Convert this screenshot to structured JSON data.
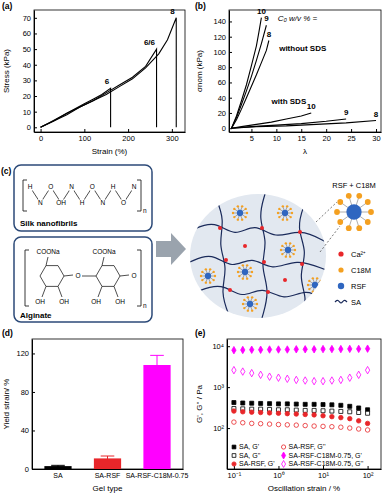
{
  "chart_data": [
    {
      "type": "line",
      "annotations": [
        "(a)"
      ],
      "xlabel": "Strain (%)",
      "ylabel": "Stress (kPa)",
      "xlim": [
        -15,
        330
      ],
      "ylim": [
        -3,
        75
      ],
      "xticks": [
        0,
        100,
        200,
        300
      ],
      "yticks": [
        0,
        10,
        20,
        30,
        40,
        50,
        60,
        70
      ],
      "series": [
        {
          "name": "6",
          "color": "#000000",
          "x": [
            0,
            20,
            40,
            60,
            80,
            100,
            120,
            140,
            160,
            160
          ],
          "values": [
            0,
            3,
            6,
            9,
            12,
            15,
            18,
            21,
            25,
            0
          ]
        },
        {
          "name": "6/6",
          "color": "#000000",
          "x": [
            0,
            30,
            60,
            90,
            120,
            150,
            180,
            210,
            240,
            265,
            265
          ],
          "values": [
            0,
            4,
            9,
            13,
            17,
            22,
            27,
            32,
            39,
            50,
            0
          ]
        },
        {
          "name": "8",
          "color": "#000000",
          "x": [
            0,
            30,
            60,
            90,
            120,
            150,
            180,
            210,
            240,
            270,
            290,
            310,
            310
          ],
          "values": [
            0,
            4,
            8,
            13,
            17,
            21,
            26,
            31,
            38,
            47,
            56,
            70,
            0
          ]
        }
      ]
    },
    {
      "type": "line",
      "title": "C₀ w/v % =",
      "annotations": [
        "(b)",
        "without SDS",
        "with SDS"
      ],
      "xlabel": "λ",
      "ylabel": "σnom (kPa)",
      "xlim": [
        0.5,
        31
      ],
      "ylim": [
        -5,
        155
      ],
      "xticks": [
        5,
        10,
        15,
        20,
        25,
        30
      ],
      "yticks": [
        0,
        20,
        40,
        60,
        80,
        100,
        120,
        140
      ],
      "series": [
        {
          "name": "10",
          "color": "#000000",
          "x": [
            1,
            2,
            3,
            4,
            5,
            6,
            6.5,
            7
          ],
          "values": [
            0,
            16,
            36,
            57,
            82,
            108,
            126,
            145
          ]
        },
        {
          "name": "9",
          "color": "#000000",
          "x": [
            1,
            2,
            3,
            4,
            5,
            6,
            7,
            8
          ],
          "values": [
            0,
            14,
            31,
            49,
            68,
            89,
            111,
            135
          ]
        },
        {
          "name": "8",
          "color": "#000000",
          "x": [
            1,
            2,
            3,
            4,
            5,
            6,
            7,
            8,
            8.5
          ],
          "values": [
            0,
            11,
            25,
            40,
            55,
            70,
            86,
            102,
            115
          ]
        },
        {
          "name": "10",
          "color": "#000000",
          "x": [
            1,
            3,
            6,
            9,
            12,
            15,
            17
          ],
          "values": [
            0,
            2,
            5,
            8,
            12,
            16,
            20
          ]
        },
        {
          "name": "9",
          "color": "#000000",
          "x": [
            1,
            5,
            10,
            15,
            20,
            24
          ],
          "values": [
            0,
            2,
            4,
            6,
            9,
            12
          ]
        },
        {
          "name": "8",
          "color": "#000000",
          "x": [
            1,
            6,
            12,
            18,
            24,
            30
          ],
          "values": [
            0,
            2,
            3,
            5,
            7,
            10
          ]
        }
      ]
    },
    {
      "type": "bar",
      "annotations": [
        "(d)"
      ],
      "xlabel": "Gel type",
      "ylabel": "Yield strain/ %",
      "categories": [
        "SA",
        "SA-RSF",
        "SA-RSF-C18M-0.75"
      ],
      "values": [
        3,
        11,
        108
      ],
      "errors": [
        0.8,
        2.5,
        10
      ],
      "colors": [
        "#000000",
        "#e8262a",
        "#ff00ff"
      ],
      "ylim": [
        0,
        135
      ],
      "yticks": [
        0,
        40,
        80,
        120
      ]
    },
    {
      "type": "scatter",
      "annotations": [
        "(e)"
      ],
      "xlabel": "Oscillation strain / %",
      "ylabel": "G', G'' / Pa",
      "log": true,
      "legend": "lower left",
      "xlim": [
        0.07,
        200
      ],
      "ylim": [
        10,
        15000
      ],
      "xticks": [
        {
          "value": 0.1,
          "label": "10⁻¹"
        },
        {
          "value": 1,
          "label": "10⁰"
        },
        {
          "value": 10,
          "label": "10¹"
        },
        {
          "value": 100,
          "label": "10²"
        }
      ],
      "yticks": [
        {
          "value": 100,
          "label": "10²"
        },
        {
          "value": 1000,
          "label": "10³"
        },
        {
          "value": 10000,
          "label": "10⁴"
        }
      ],
      "x": [
        0.1,
        0.158,
        0.251,
        0.398,
        0.631,
        1,
        1.58,
        2.51,
        3.98,
        6.31,
        10,
        15.8,
        25.1,
        39.8,
        63.1,
        100
      ],
      "series": [
        {
          "name": "SA, G'",
          "color": "#000000",
          "marker": "square",
          "values": [
            420,
            410,
            405,
            400,
            395,
            390,
            390,
            385,
            380,
            380,
            375,
            370,
            360,
            340,
            310,
            280
          ]
        },
        {
          "name": "SA, G''",
          "color": "#000000",
          "marker": "square-open",
          "values": [
            300,
            295,
            290,
            290,
            285,
            280,
            280,
            275,
            270,
            270,
            265,
            260,
            255,
            250,
            240,
            230
          ]
        },
        {
          "name": "SA-RSF, G'",
          "color": "#e8262a",
          "marker": "circle",
          "values": [
            260,
            250,
            245,
            240,
            235,
            230,
            225,
            220,
            215,
            210,
            200,
            190,
            180,
            170,
            150,
            130
          ]
        },
        {
          "name": "SA-RSF, G''",
          "color": "#e8262a",
          "marker": "circle-open",
          "values": [
            140,
            135,
            130,
            128,
            125,
            122,
            120,
            118,
            115,
            112,
            110,
            108,
            105,
            100,
            95,
            90
          ]
        },
        {
          "name": "SA-RSF-C18M-0.75, G'",
          "color": "#ff00ff",
          "marker": "diamond",
          "values": [
            8000,
            8100,
            8200,
            8200,
            8300,
            8300,
            8300,
            8400,
            8400,
            8400,
            8500,
            8500,
            8500,
            8600,
            8600,
            8700
          ]
        },
        {
          "name": "SA-RSF-C18M-0.75, G''",
          "color": "#ff00ff",
          "marker": "diamond-open",
          "values": [
            2600,
            2400,
            2200,
            2000,
            1800,
            1700,
            1600,
            1500,
            1450,
            1400,
            1400,
            1450,
            1500,
            1700,
            2000,
            2600
          ]
        }
      ]
    }
  ],
  "diagram": {
    "label": "(c)",
    "boxes": [
      {
        "title": "Silk nanofibrils",
        "atoms": [
          "H",
          "N",
          "O",
          "OH",
          "N",
          "H",
          "O",
          "N",
          "H",
          "O",
          "N"
        ],
        "repeat": "n"
      },
      {
        "title": "Alginate",
        "atoms": [
          "COONa",
          "OH",
          "OH",
          "O",
          "COONa",
          "OH",
          "OH",
          "O"
        ],
        "repeat": "n"
      }
    ],
    "micelle_label": "RSF + C18M",
    "legend": [
      {
        "label": "Ca²⁺",
        "color": "#e8262a"
      },
      {
        "label": "C18M",
        "color": "#f4a020"
      },
      {
        "label": "RSF",
        "color": "#2f66c0"
      },
      {
        "label": "SA",
        "color": "#1a2a5a"
      }
    ]
  }
}
